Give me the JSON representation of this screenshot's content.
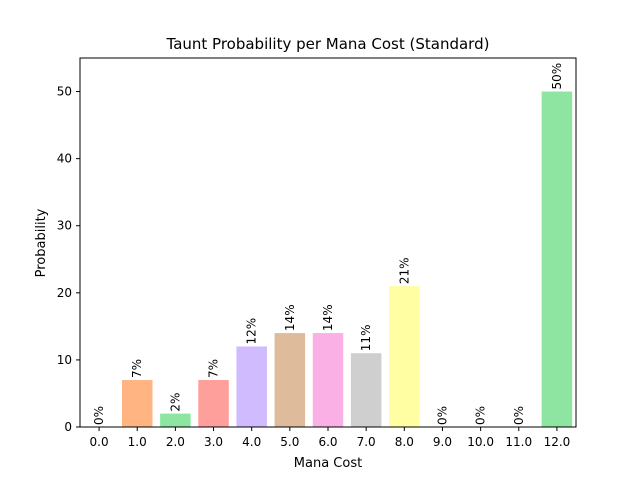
{
  "chart_data": {
    "type": "bar",
    "title": "Taunt Probability per Mana Cost (Standard)",
    "xlabel": "Mana Cost",
    "ylabel": "Probability",
    "categories": [
      "0.0",
      "1.0",
      "2.0",
      "3.0",
      "4.0",
      "5.0",
      "6.0",
      "7.0",
      "8.0",
      "9.0",
      "10.0",
      "11.0",
      "12.0"
    ],
    "values": [
      0,
      7,
      2,
      7,
      12,
      14,
      14,
      11,
      21,
      0,
      0,
      0,
      50
    ],
    "data_labels": [
      "0%",
      "7%",
      "2%",
      "7%",
      "12%",
      "14%",
      "14%",
      "11%",
      "21%",
      "0%",
      "0%",
      "0%",
      "50%"
    ],
    "colors": [
      "#a1c9f4",
      "#ffb482",
      "#8de5a1",
      "#ff9f9b",
      "#d0bbff",
      "#debb9b",
      "#fab0e4",
      "#cfcfcf",
      "#fffea3",
      "#b9f2f0",
      "#a1c9f4",
      "#ffb482",
      "#8de5a1"
    ],
    "ylim": [
      0,
      55
    ],
    "yticks": [
      0,
      10,
      20,
      30,
      40,
      50
    ],
    "grid": false,
    "legend": "none"
  }
}
